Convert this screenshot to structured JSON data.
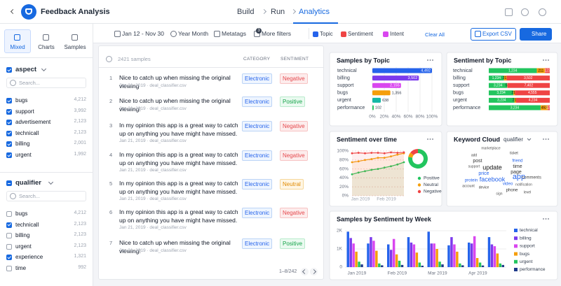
{
  "header": {
    "title": "Feedback Analysis",
    "steps": [
      "Build",
      "Run",
      "Analytics"
    ],
    "active_step": 2
  },
  "sidebar": {
    "tabs": [
      "Mixed",
      "Charts",
      "Samples"
    ],
    "active_tab": 0,
    "filters": [
      {
        "name": "aspect",
        "state": "checked",
        "search": "Search...",
        "items": [
          {
            "label": "bugs",
            "count": "4,212",
            "checked": true
          },
          {
            "label": "support",
            "count": "3,992",
            "checked": true
          },
          {
            "label": "advertisement",
            "count": "2,123",
            "checked": true
          },
          {
            "label": "technicall",
            "count": "2,123",
            "checked": true
          },
          {
            "label": "billing",
            "count": "2,001",
            "checked": true
          },
          {
            "label": "urgent",
            "count": "1,992",
            "checked": true
          }
        ]
      },
      {
        "name": "qualifier",
        "state": "partial",
        "search": "Search...",
        "items": [
          {
            "label": "bugs",
            "count": "4,212",
            "checked": false
          },
          {
            "label": "technicall",
            "count": "2,123",
            "checked": true
          },
          {
            "label": "billing",
            "count": "2,123",
            "checked": false
          },
          {
            "label": "urgent",
            "count": "2,123",
            "checked": false
          },
          {
            "label": "experience",
            "count": "1,321",
            "checked": true
          },
          {
            "label": "time",
            "count": "992",
            "checked": false
          }
        ]
      }
    ]
  },
  "toolbar": {
    "date": "Jan 12 - Nov 30",
    "granularity": "Year Month",
    "metatags": "Metatags",
    "more_filters": "More filters",
    "more_filters_count": 3,
    "toggles": [
      "Topic",
      "Sentiment",
      "Intent"
    ],
    "clear": "Clear All",
    "export": "Export CSV",
    "share": "Share"
  },
  "samples": {
    "count_label": "2421 samples",
    "columns": [
      "CATEGORY",
      "SENTIMENT"
    ],
    "pagination": "1–8/242",
    "rows": [
      {
        "index": 1,
        "text": "Nice to catch up when missing the original viewing",
        "meta": "Jan 21, 2019 · deal_classifier.csv",
        "category": "Electronic",
        "sentiment": "Negative"
      },
      {
        "index": 2,
        "text": "Nice to catch up when missing the original viewing!",
        "meta": "Jan 21, 2019 · deal_classifier.csv",
        "category": "Electronic",
        "sentiment": "Positive"
      },
      {
        "index": 3,
        "text": "In my opinion this app is a great way to catch up on anything you have might have missed.",
        "meta": "Jan 21, 2019 · deal_classifier.csv",
        "category": "Electronic",
        "sentiment": "Negative"
      },
      {
        "index": 4,
        "text": "In my opinion this app is a great way to catch up on anything you have might have missed.",
        "meta": "Jan 21, 2019 · deal_classifier.csv",
        "category": "Electronic",
        "sentiment": "Negative"
      },
      {
        "index": 5,
        "text": "In my opinion this app is a great way to catch up on anything you have might have missed.",
        "meta": "Jan 21, 2019 · deal_classifier.csv",
        "category": "Electronic",
        "sentiment": "Neutral"
      },
      {
        "index": 6,
        "text": "In my opinion this app is a great way to catch up on anything you have might have missed.",
        "meta": "Jan 21, 2019 · deal_classifier.csv",
        "category": "Electronic",
        "sentiment": "Negative"
      },
      {
        "index": 7,
        "text": "Nice to catch up when missing the original viewing!",
        "meta": "Jan 21, 2019 · deal_classifier.csv",
        "category": "Electronic",
        "sentiment": "Positive"
      }
    ]
  },
  "chart_data": [
    {
      "type": "hbar",
      "title": "Samples by Topic",
      "categories": [
        "technical",
        "billing",
        "support",
        "bugs",
        "urgent",
        "performance"
      ],
      "values": [
        4492,
        3502,
        2155,
        1356,
        638,
        102
      ],
      "value_labels": [
        "4,492",
        "3,502",
        "2,155",
        "1,356",
        "638",
        "102"
      ],
      "colors": [
        "#2563eb",
        "#7c3aed",
        "#d946ef",
        "#f59e0b",
        "#14b8a6",
        "#22c55e"
      ],
      "xlim": [
        0,
        100
      ],
      "xticks": [
        {
          "value": 0,
          "label": "0%"
        },
        {
          "value": 20,
          "label": "20%"
        },
        {
          "value": 40,
          "label": "40%"
        },
        {
          "value": 60,
          "label": "60%"
        },
        {
          "value": 80,
          "label": "80%"
        },
        {
          "value": 100,
          "label": "100%"
        }
      ],
      "grid": true
    },
    {
      "type": "stacked100",
      "title": "Sentiment by Topic",
      "categories": [
        "technical",
        "billing",
        "support",
        "bugs",
        "urgent",
        "performance"
      ],
      "series": [
        {
          "name": "Positive",
          "color": "#22c55e",
          "values": [
            1234,
            1234,
            3234,
            3234,
            3234,
            3234
          ],
          "value_labels": [
            "1,234",
            "1,234",
            "3,234",
            "3,234",
            "3,234",
            "3,234"
          ]
        },
        {
          "name": "Neutral",
          "color": "#f59e0b",
          "values": [
            211,
            211,
            52,
            211,
            211,
            452
          ],
          "value_labels": [
            "211",
            "211",
            "52",
            "211",
            "211",
            "452"
          ]
        },
        {
          "name": "Negative",
          "color": "#ef4444",
          "values": [
            123,
            3502,
            7402,
            4555,
            4234,
            120
          ],
          "value_labels": [
            "123",
            "3,502",
            "7,402",
            "4,555",
            "4,234",
            "120"
          ]
        }
      ]
    },
    {
      "type": "line",
      "title": "Sentiment over time",
      "categories": [
        "Jan 2019",
        null,
        null,
        null,
        "Feb 2019",
        null,
        null,
        null,
        null
      ],
      "series": [
        {
          "name": "Positive",
          "color": "#22c55e",
          "values": [
            48,
            52,
            55,
            58,
            60,
            63,
            66,
            70,
            75
          ]
        },
        {
          "name": "Neutral",
          "color": "#f59e0b",
          "values": [
            75,
            77,
            80,
            82,
            85,
            85,
            88,
            92,
            95
          ]
        },
        {
          "name": "Negative",
          "color": "#ef4444",
          "values": [
            95,
            96,
            95,
            96,
            96,
            95,
            97,
            96,
            97
          ]
        }
      ],
      "donut_values": [
        78,
        8,
        14
      ],
      "ylim": [
        0,
        100
      ],
      "yticks": [
        {
          "value": 0,
          "label": "0%"
        },
        {
          "value": 20,
          "label": "20%"
        },
        {
          "value": 40,
          "label": "40%"
        },
        {
          "value": 60,
          "label": "60%"
        },
        {
          "value": 80,
          "label": "80%"
        },
        {
          "value": 100,
          "label": "100%"
        }
      ],
      "grid": true
    },
    {
      "type": "bar",
      "title": "Samples by Sentiment by Week",
      "categories": [
        "Jan 2019",
        null,
        "Feb 2019",
        null,
        "Mar 2019",
        null,
        "Apr 2019",
        null
      ],
      "series": [
        {
          "name": "technical",
          "color": "#2563eb",
          "values": [
            1950,
            1300,
            1250,
            1650,
            1950,
            1200,
            1350,
            1650
          ]
        },
        {
          "name": "billing",
          "color": "#7c3aed",
          "values": [
            1600,
            1650,
            950,
            1350,
            1300,
            1650,
            1300,
            1250
          ]
        },
        {
          "name": "support",
          "color": "#d946ef",
          "values": [
            1300,
            1450,
            1550,
            1250,
            1300,
            1250,
            1700,
            1150
          ]
        },
        {
          "name": "bugs",
          "color": "#f59e0b",
          "values": [
            850,
            900,
            700,
            800,
            1000,
            850,
            500,
            750
          ]
        },
        {
          "name": "urgent",
          "color": "#22c55e",
          "values": [
            300,
            200,
            350,
            250,
            300,
            200,
            250,
            200
          ]
        },
        {
          "name": "performance",
          "color": "#1e3a8a",
          "values": [
            150,
            100,
            120,
            80,
            150,
            100,
            90,
            120
          ]
        }
      ],
      "ylim": [
        0,
        2000
      ],
      "yticks": [
        0,
        {
          "value": 1000,
          "label": "1K"
        },
        {
          "value": 2000,
          "label": "2K"
        }
      ],
      "grid": true
    }
  ],
  "keyword_cloud": {
    "title": "Keyword Cloud",
    "selector": "qualifier",
    "words": [
      "marketplace",
      "ticket",
      "add",
      "post",
      "friend",
      "support",
      "update",
      "time",
      "price",
      "page",
      "protein",
      "facebook",
      "app",
      "comments",
      "video",
      "notification",
      "account",
      "device",
      "phone",
      "sign",
      "level"
    ]
  }
}
